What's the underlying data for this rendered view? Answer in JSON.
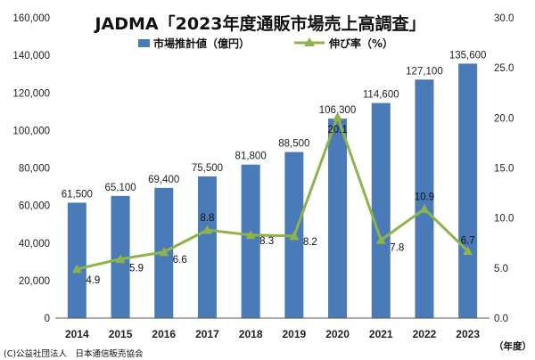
{
  "chart_data": {
    "type": "bar+line",
    "title": "JADMA「2023年度通販市場売上高調査」",
    "categories": [
      "2014",
      "2015",
      "2016",
      "2017",
      "2018",
      "2019",
      "2020",
      "2021",
      "2022",
      "2023"
    ],
    "series": [
      {
        "name": "市場推計値（億円）",
        "type": "bar",
        "axis": "left",
        "color": "#4a7ab8",
        "values": [
          61500,
          65100,
          69400,
          75500,
          81800,
          88500,
          106300,
          114600,
          127100,
          135600
        ],
        "labels": [
          "61,500",
          "65,100",
          "69,400",
          "75,500",
          "81,800",
          "88,500",
          "106,300",
          "114,600",
          "127,100",
          "135,600"
        ]
      },
      {
        "name": "伸び率（%）",
        "type": "line",
        "axis": "right",
        "color": "#8db34a",
        "values": [
          4.9,
          5.9,
          6.6,
          8.8,
          8.3,
          8.2,
          20.1,
          7.8,
          10.9,
          6.7
        ],
        "labels": [
          "4.9",
          "5.9",
          "6.6",
          "8.8",
          "8.3",
          "8.2",
          "20.1",
          "7.8",
          "10.9",
          "6.7"
        ]
      }
    ],
    "y_left": {
      "min": 0,
      "max": 160000,
      "ticks": [
        "0",
        "20,000",
        "40,000",
        "60,000",
        "80,000",
        "100,000",
        "120,000",
        "140,000",
        "160,000"
      ]
    },
    "y_right": {
      "min": 0,
      "max": 30,
      "ticks": [
        "0.0",
        "5.0",
        "10.0",
        "15.0",
        "20.0",
        "25.0",
        "30.0"
      ]
    },
    "x_unit": "（年度）",
    "legend": "top-center",
    "grid": false,
    "footer": "(C)公益社団法人　日本通信販売協会"
  }
}
